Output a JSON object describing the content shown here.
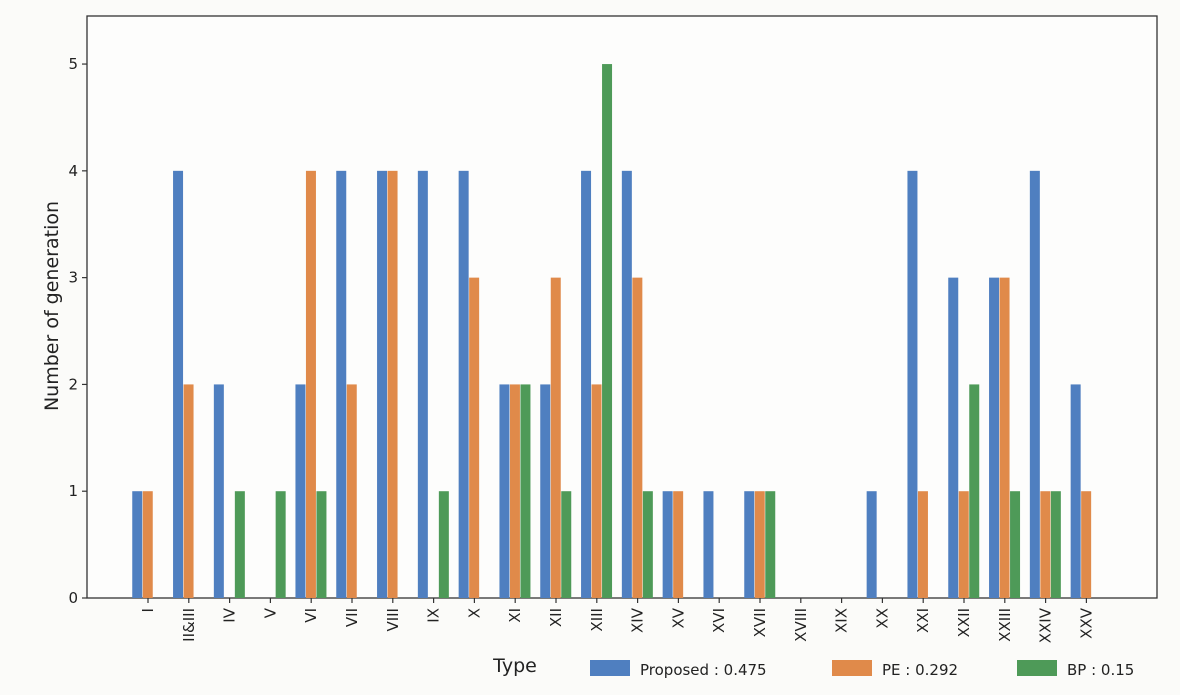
{
  "chart_data": {
    "type": "bar",
    "categories": [
      "I",
      "II&III",
      "IV",
      "V",
      "VI",
      "VII",
      "VIII",
      "IX",
      "X",
      "XI",
      "XII",
      "XIII",
      "XIV",
      "XV",
      "XVI",
      "XVII",
      "XVIII",
      "XIX",
      "XX",
      "XXI",
      "XXII",
      "XXIII",
      "XXIV",
      "XXV"
    ],
    "series": [
      {
        "name": "Proposed : 0.475",
        "color": "#4f7fc0",
        "values": [
          1,
          4,
          2,
          0,
          2,
          4,
          4,
          4,
          4,
          2,
          2,
          4,
          4,
          1,
          1,
          1,
          0,
          0,
          1,
          4,
          3,
          3,
          4,
          2
        ]
      },
      {
        "name": "PE : 0.292",
        "color": "#e08a4a",
        "values": [
          1,
          2,
          0,
          0,
          4,
          2,
          4,
          0,
          3,
          2,
          3,
          2,
          3,
          1,
          0,
          1,
          0,
          0,
          0,
          1,
          1,
          3,
          1,
          1
        ]
      },
      {
        "name": "BP : 0.15",
        "color": "#4e9a58",
        "values": [
          0,
          0,
          1,
          1,
          1,
          0,
          0,
          1,
          0,
          2,
          1,
          5,
          1,
          0,
          0,
          1,
          0,
          0,
          0,
          0,
          2,
          1,
          1,
          0
        ]
      }
    ],
    "xlabel": "Type",
    "ylabel": "Number of generation",
    "ylim": [
      0,
      5.45
    ],
    "yticks": [
      "0",
      "1",
      "2",
      "3",
      "4",
      "5"
    ],
    "grid": false,
    "legend_position": "bottom-right"
  }
}
